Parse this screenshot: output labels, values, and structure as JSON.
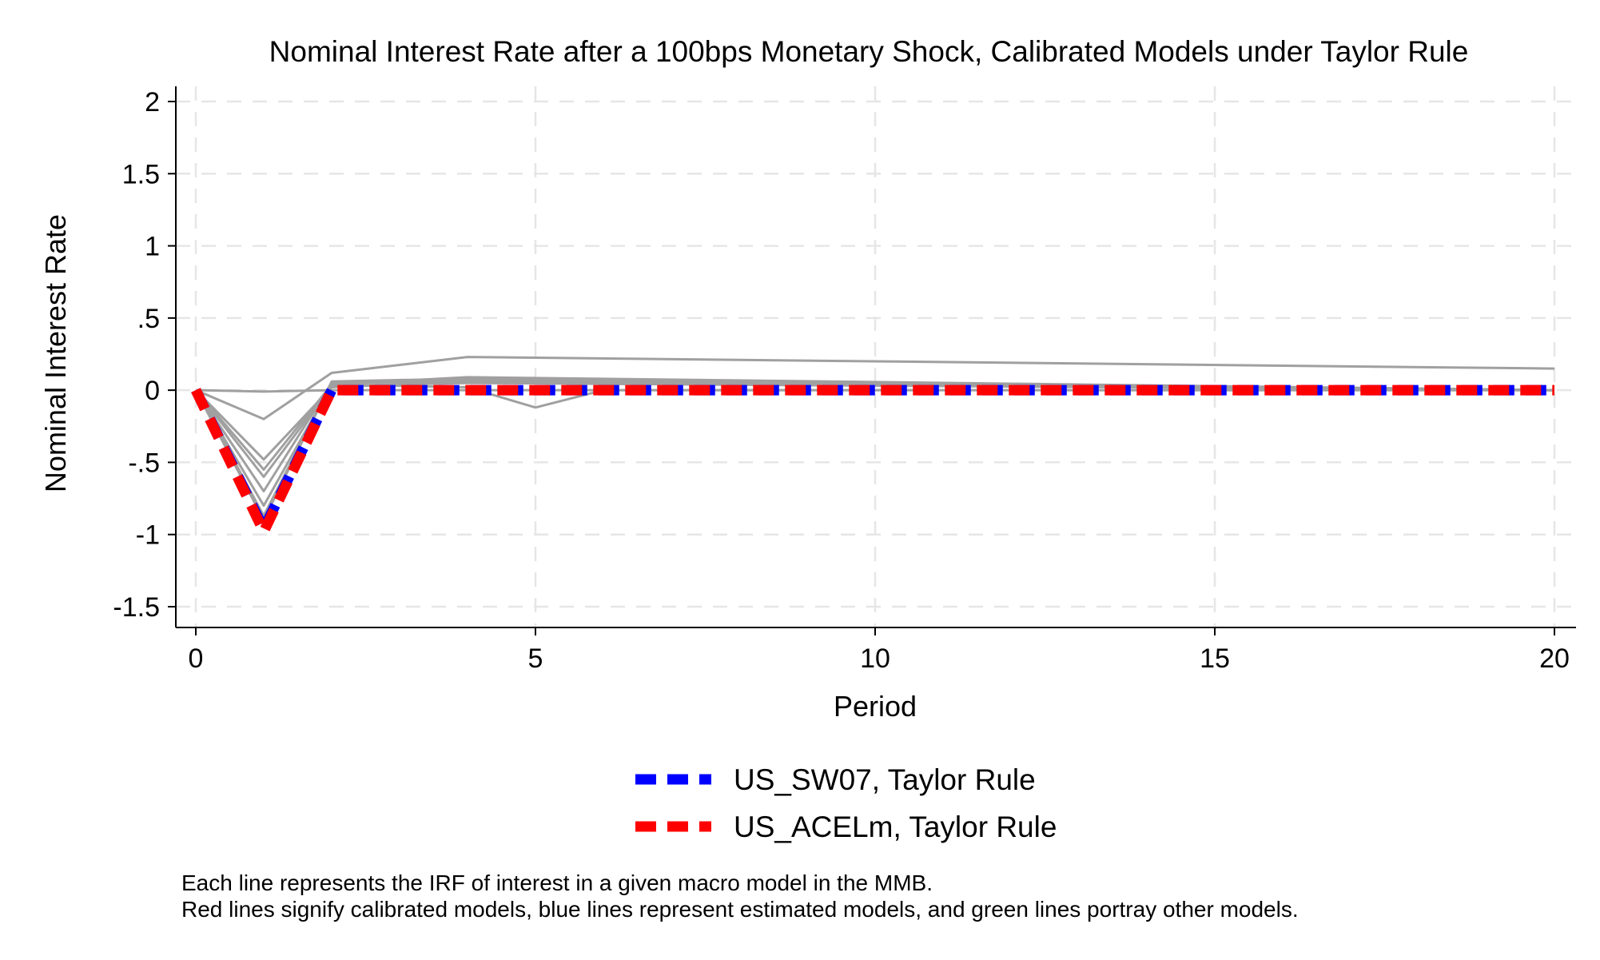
{
  "chart_data": {
    "type": "line",
    "title": "Nominal Interest Rate after a 100bps Monetary Shock, Calibrated Models under Taylor Rule",
    "xlabel": "Period",
    "ylabel": "Nominal Interest Rate",
    "xlim": [
      0,
      20
    ],
    "ylim": [
      -1.5,
      2
    ],
    "x_ticks": [
      {
        "value": 0,
        "label": "0"
      },
      {
        "value": 5,
        "label": "5"
      },
      {
        "value": 10,
        "label": "10"
      },
      {
        "value": 15,
        "label": "15"
      },
      {
        "value": 20,
        "label": "20"
      }
    ],
    "y_ticks": [
      {
        "value": 2,
        "label": "2"
      },
      {
        "value": 1.5,
        "label": "1.5"
      },
      {
        "value": 1,
        "label": "1"
      },
      {
        "value": 0.5,
        "label": ".5"
      },
      {
        "value": 0,
        "label": "0"
      },
      {
        "value": -0.5,
        "label": "-.5"
      },
      {
        "value": -1,
        "label": "-1"
      },
      {
        "value": -1.5,
        "label": "-1.5"
      }
    ],
    "grid": true,
    "legend_position": "bottom",
    "background_series": [
      {
        "x": [
          0,
          1,
          2,
          4,
          20
        ],
        "y": [
          0,
          -0.9,
          0.06,
          0.08,
          0.0
        ]
      },
      {
        "x": [
          0,
          1,
          2,
          4,
          20
        ],
        "y": [
          0,
          -0.87,
          0.05,
          0.07,
          0.0
        ]
      },
      {
        "x": [
          0,
          1,
          2,
          4,
          5,
          6,
          20
        ],
        "y": [
          0,
          -0.8,
          0.04,
          0.02,
          -0.12,
          0.0,
          0.0
        ]
      },
      {
        "x": [
          0,
          1,
          2,
          4,
          20
        ],
        "y": [
          0,
          -0.7,
          0.05,
          0.06,
          0.0
        ]
      },
      {
        "x": [
          0,
          1,
          2,
          4,
          20
        ],
        "y": [
          0,
          -0.6,
          0.03,
          0.05,
          0.0
        ]
      },
      {
        "x": [
          0,
          1,
          2,
          4,
          20
        ],
        "y": [
          0,
          -0.55,
          0.04,
          0.09,
          0.0
        ]
      },
      {
        "x": [
          0,
          1,
          2,
          4,
          20
        ],
        "y": [
          0,
          -0.48,
          0.02,
          0.06,
          0.0
        ]
      },
      {
        "x": [
          0,
          1,
          2,
          4,
          20
        ],
        "y": [
          0,
          -0.2,
          0.12,
          0.23,
          0.15
        ]
      },
      {
        "x": [
          0,
          1,
          2,
          20
        ],
        "y": [
          0,
          -0.01,
          0.0,
          0.0
        ]
      }
    ],
    "series": [
      {
        "name": "US_SW07, Taylor Rule",
        "color": "#0000ff",
        "dash": "dashed",
        "x": [
          0,
          1,
          2,
          3,
          4,
          5,
          10,
          15,
          20
        ],
        "y": [
          0,
          -0.96,
          0.0,
          0.0,
          0.0,
          0.0,
          0.0,
          0.0,
          0.0
        ]
      },
      {
        "name": "US_ACELm, Taylor Rule",
        "color": "#ff0000",
        "dash": "dashed",
        "x": [
          0,
          1,
          2,
          3,
          4,
          5,
          10,
          15,
          20
        ],
        "y": [
          0,
          -0.98,
          0.0,
          0.0,
          0.0,
          0.0,
          0.0,
          0.0,
          0.0
        ]
      }
    ],
    "background_color": "#a0a0a0",
    "notes": [
      "Each line represents the IRF of interest in a given macro model in the MMB.",
      "Red lines signify calibrated models, blue lines represent estimated models, and green lines portray other models."
    ]
  }
}
